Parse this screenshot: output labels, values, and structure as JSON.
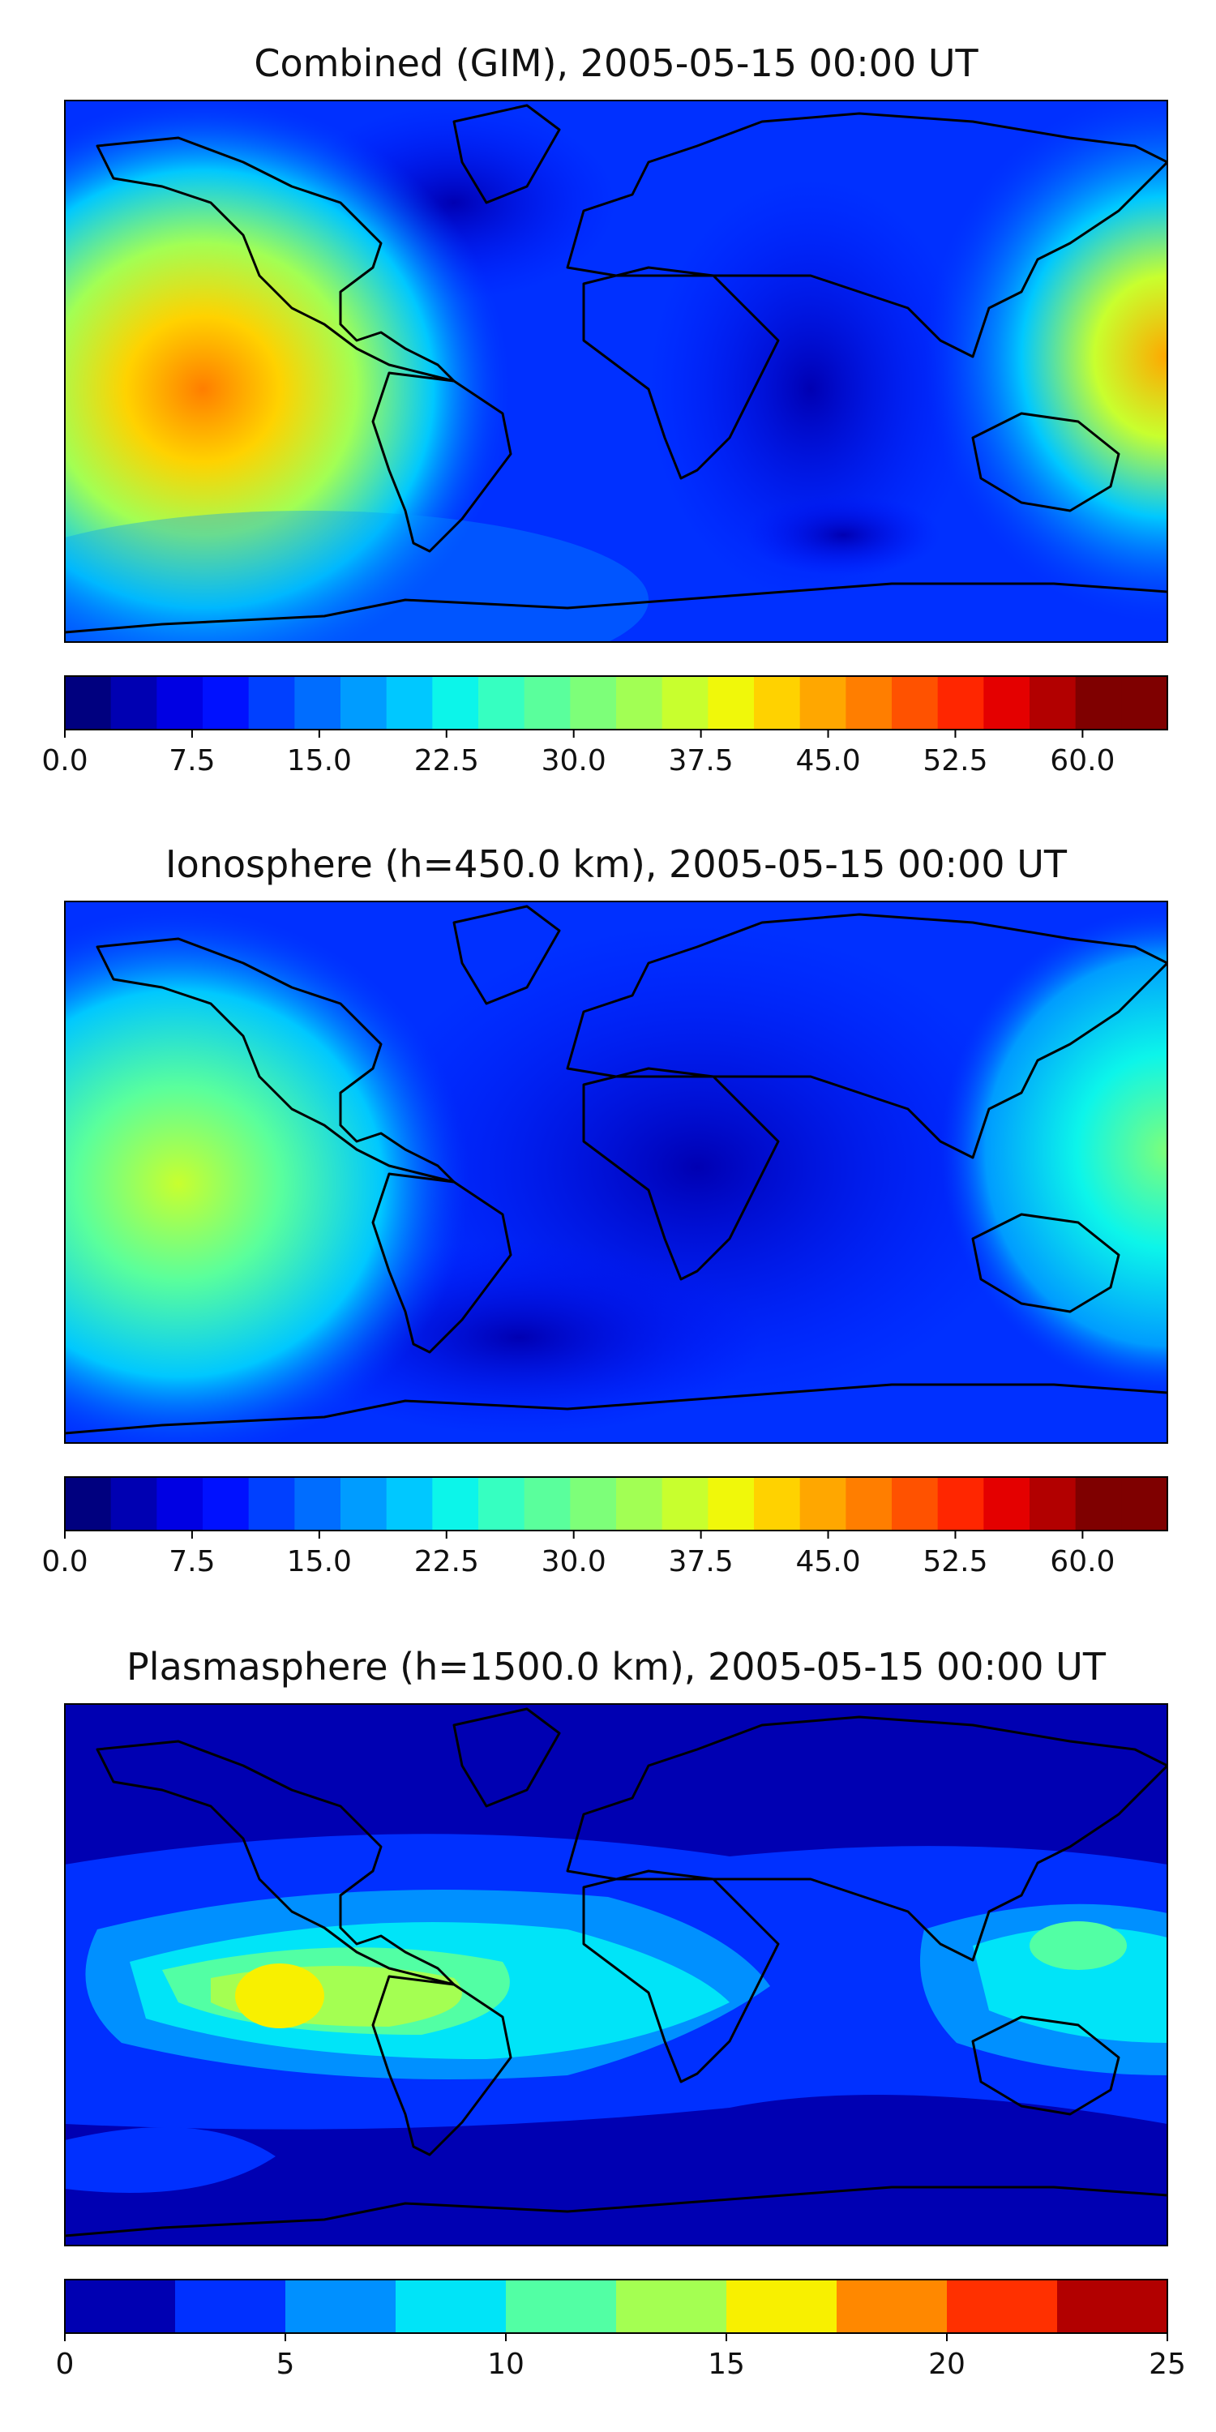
{
  "panels": [
    {
      "title": "Combined (GIM), 2005-05-15 00:00 UT",
      "colorbar": {
        "min": 0,
        "max": 65,
        "levels": 24,
        "tick_labels": [
          "0.0",
          "7.5",
          "15.0",
          "22.5",
          "30.0",
          "37.5",
          "45.0",
          "52.5",
          "60.0"
        ],
        "tick_values": [
          0,
          7.5,
          15,
          22.5,
          30,
          37.5,
          45,
          52.5,
          60
        ]
      }
    },
    {
      "title": "Ionosphere  (h=450.0 km), 2005-05-15 00:00 UT",
      "colorbar": {
        "min": 0,
        "max": 65,
        "levels": 24,
        "tick_labels": [
          "0.0",
          "7.5",
          "15.0",
          "22.5",
          "30.0",
          "37.5",
          "45.0",
          "52.5",
          "60.0"
        ],
        "tick_values": [
          0,
          7.5,
          15,
          22.5,
          30,
          37.5,
          45,
          52.5,
          60
        ]
      }
    },
    {
      "title": "Plasmasphere (h=1500.0 km), 2005-05-15 00:00 UT",
      "colorbar": {
        "min": 0,
        "max": 25,
        "levels": 10,
        "tick_labels": [
          "0",
          "5",
          "10",
          "15",
          "20",
          "25"
        ],
        "tick_values": [
          0,
          5,
          10,
          15,
          20,
          25
        ]
      }
    }
  ],
  "colors": {
    "jet24": [
      "#00007f",
      "#0000b2",
      "#0000e3",
      "#0011ff",
      "#0040ff",
      "#006dff",
      "#009cff",
      "#00c8ff",
      "#0cf5ea",
      "#36ffc1",
      "#5aff9c",
      "#7dff79",
      "#a2ff54",
      "#c8ff2e",
      "#f0f80a",
      "#ffd200",
      "#ffa700",
      "#ff7e00",
      "#ff5200",
      "#ff2600",
      "#e40000",
      "#b20000",
      "#7f0000",
      "#7f0000"
    ],
    "jet10": [
      "#0000b2",
      "#0030ff",
      "#0090ff",
      "#00e4f8",
      "#52ffa4",
      "#a4ff52",
      "#f8f000",
      "#ff8800",
      "#ff3000",
      "#b20000"
    ],
    "coastline": "#000000"
  }
}
